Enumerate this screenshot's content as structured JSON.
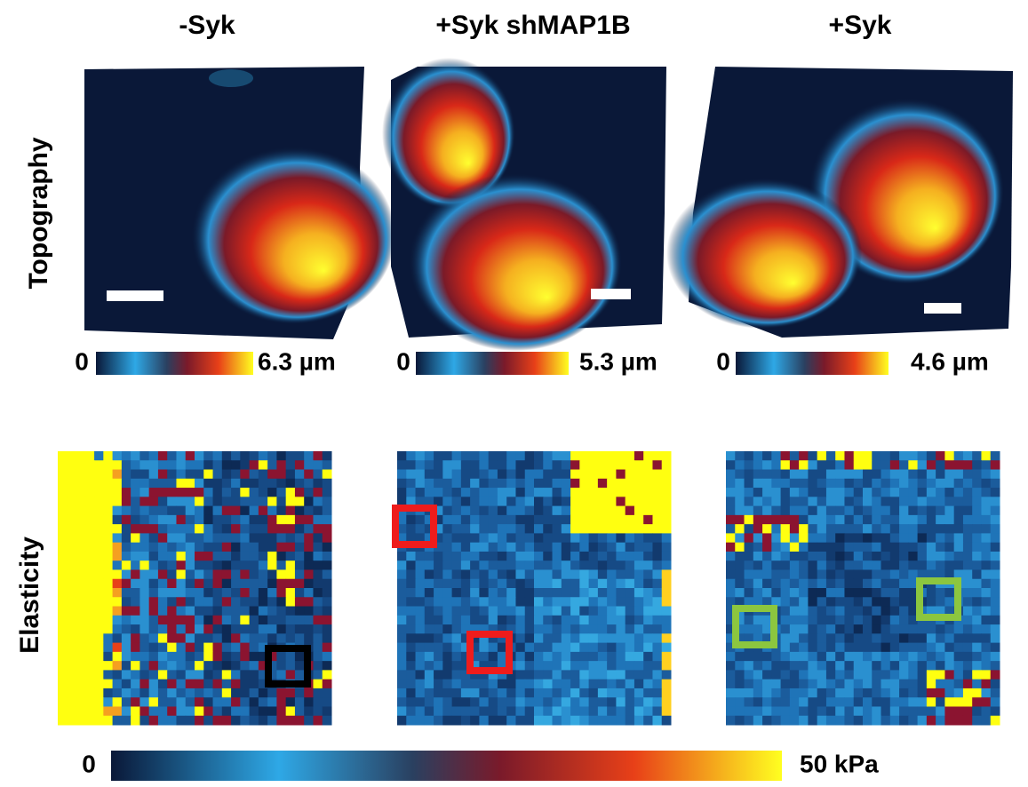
{
  "columns": [
    "-Syk",
    "+Syk shMAP1B",
    "+Syk"
  ],
  "rows": [
    "Topography",
    "Elasticity"
  ],
  "topography_colorbars": [
    {
      "min": "0",
      "max": "6.3 µm"
    },
    {
      "min": "0",
      "max": "5.3 µm"
    },
    {
      "min": "0",
      "max": "4.6 µm"
    }
  ],
  "elasticity_colorbar": {
    "min": "0",
    "max": "50 kPa"
  }
}
